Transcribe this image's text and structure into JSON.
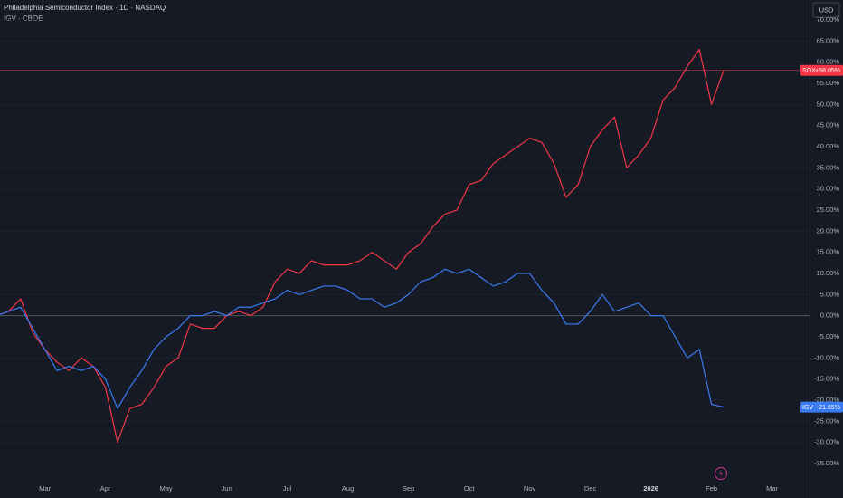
{
  "chart_data": {
    "type": "line",
    "title": "Philadelphia Semiconductor Index · 1D · NASDAQ",
    "subtitle": "IGV · CBOE",
    "unit_button": "USD",
    "categories": [
      null,
      null,
      null,
      null,
      "Mar",
      null,
      null,
      null,
      null,
      "Apr",
      null,
      null,
      null,
      null,
      "May",
      null,
      null,
      null,
      null,
      "Jun",
      null,
      null,
      null,
      null,
      "Jul",
      null,
      null,
      null,
      null,
      "Aug",
      null,
      null,
      null,
      null,
      "Sep",
      null,
      null,
      null,
      null,
      "Oct",
      null,
      null,
      null,
      null,
      "Nov",
      null,
      null,
      null,
      null,
      "Dec",
      null,
      null,
      null,
      null,
      "2026",
      null,
      null,
      null,
      null,
      "Feb",
      null,
      null,
      null,
      null,
      "Mar"
    ],
    "series": [
      {
        "name": "SOX",
        "color": "#f23645",
        "price_line": true,
        "values": [
          0,
          1,
          4,
          -4,
          -8,
          -11,
          -13,
          -10,
          -12,
          -17,
          -30,
          -22,
          -21,
          -17,
          -12,
          -10,
          -2,
          -3,
          -3,
          0,
          1,
          0,
          2,
          8,
          11,
          10,
          13,
          12,
          12,
          12,
          13,
          15,
          13,
          11,
          15,
          17,
          21,
          24,
          25,
          31,
          32,
          36,
          38,
          40,
          42,
          41,
          36,
          28,
          31,
          40,
          44,
          47,
          35,
          38,
          42,
          51,
          54,
          59,
          63,
          50,
          58.05,
          null,
          null,
          null,
          null
        ],
        "value_labels": [
          null,
          null,
          null,
          null,
          null,
          null,
          null,
          null,
          null,
          null,
          null,
          null,
          null,
          null,
          null,
          null,
          null,
          null,
          null,
          null,
          null,
          null,
          null,
          null,
          null,
          null,
          null,
          null,
          null,
          null,
          null,
          null,
          null,
          null,
          null,
          null,
          null,
          null,
          null,
          null,
          null,
          null,
          null,
          null,
          null,
          null,
          null,
          null,
          null,
          null,
          null,
          null,
          null,
          null,
          null,
          null,
          null,
          null,
          null,
          null,
          "+58.05%",
          null,
          null,
          null,
          null
        ]
      },
      {
        "name": "IGV",
        "color": "#3a7bf0",
        "price_line": false,
        "values": [
          0,
          1,
          2,
          -3,
          -8,
          -13,
          -12,
          -13,
          -12,
          -15,
          -22,
          -17,
          -13,
          -8,
          -5,
          -3,
          0,
          0,
          1,
          0,
          2,
          2,
          3,
          4,
          6,
          5,
          6,
          7,
          7,
          6,
          4,
          4,
          2,
          3,
          5,
          8,
          9,
          11,
          10,
          11,
          9,
          7,
          8,
          10,
          10,
          6,
          3,
          -2,
          -2,
          1,
          5,
          1,
          2,
          3,
          0,
          0,
          -5,
          -10,
          -8,
          -21,
          -21.65,
          null,
          null,
          null,
          null
        ],
        "value_labels": [
          null,
          null,
          null,
          null,
          null,
          null,
          null,
          null,
          null,
          null,
          null,
          null,
          null,
          null,
          null,
          null,
          null,
          null,
          null,
          null,
          null,
          null,
          null,
          null,
          null,
          null,
          null,
          null,
          null,
          null,
          null,
          null,
          null,
          null,
          null,
          null,
          null,
          null,
          null,
          null,
          null,
          null,
          null,
          null,
          null,
          null,
          null,
          null,
          null,
          null,
          null,
          null,
          null,
          null,
          null,
          null,
          null,
          null,
          null,
          null,
          "-21.65%",
          null,
          null,
          null,
          null
        ]
      }
    ],
    "ylim": [
      -37.8,
      74.7
    ],
    "yticks": [
      {
        "value": 70,
        "label": "70.00%"
      },
      {
        "value": 65,
        "label": "65.00%"
      },
      {
        "value": 60,
        "label": "60.00%"
      },
      {
        "value": 55,
        "label": "55.00%"
      },
      {
        "value": 50,
        "label": "50.00%"
      },
      {
        "value": 45,
        "label": "45.00%"
      },
      {
        "value": 40,
        "label": "40.00%"
      },
      {
        "value": 35,
        "label": "35.00%"
      },
      {
        "value": 30,
        "label": "30.00%"
      },
      {
        "value": 25,
        "label": "25.00%"
      },
      {
        "value": 20,
        "label": "20.00%"
      },
      {
        "value": 15,
        "label": "15.00%"
      },
      {
        "value": 10,
        "label": "10.00%"
      },
      {
        "value": 5,
        "label": "5.00%"
      },
      {
        "value": 0,
        "label": "0.00%"
      },
      {
        "value": -5,
        "label": "-5.00%"
      },
      {
        "value": -10,
        "label": "-10.00%"
      },
      {
        "value": -15,
        "label": "-15.00%"
      },
      {
        "value": -20,
        "label": "-20.00%"
      },
      {
        "value": -25,
        "label": "-25.00%"
      },
      {
        "value": -30,
        "label": "-30.00%"
      },
      {
        "value": -35,
        "label": "-35.00%"
      }
    ],
    "grid": true
  }
}
